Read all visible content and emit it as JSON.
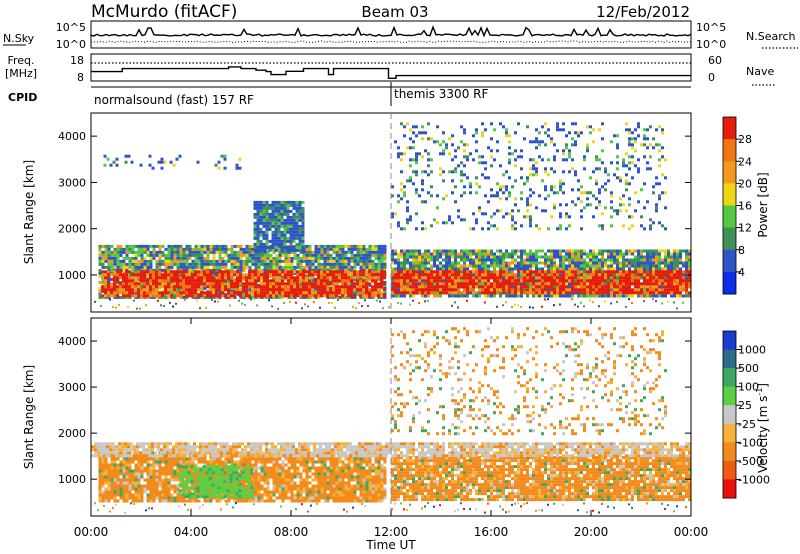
{
  "header": {
    "station": "McMurdo (fitACF)",
    "beam": "Beam 03",
    "date": "12/Feb/2012"
  },
  "noise_panel": {
    "left_label": "N.Sky",
    "right_label": "N.Search",
    "left_ticks": [
      "10^5",
      "10^0"
    ],
    "right_ticks": [
      "10^5",
      "10^0"
    ]
  },
  "freq_panel": {
    "left_label_1": "Freq.",
    "left_label_2": "[MHz]",
    "right_label": "Nave",
    "left_ticks": [
      "18",
      "8"
    ],
    "right_ticks": [
      "60",
      "0"
    ],
    "freq_mhz_segments": [
      {
        "start_h": 0.0,
        "end_h": 1.25,
        "value": 11.5
      },
      {
        "start_h": 1.25,
        "end_h": 5.5,
        "value": 12.6
      },
      {
        "start_h": 5.5,
        "end_h": 6.0,
        "value": 13.2
      },
      {
        "start_h": 6.0,
        "end_h": 6.6,
        "value": 12.6
      },
      {
        "start_h": 6.6,
        "end_h": 7.0,
        "value": 12.0
      },
      {
        "start_h": 7.0,
        "end_h": 7.2,
        "value": 11.5
      },
      {
        "start_h": 7.2,
        "end_h": 7.8,
        "value": 10.4
      },
      {
        "start_h": 7.8,
        "end_h": 8.5,
        "value": 11.6
      },
      {
        "start_h": 8.5,
        "end_h": 9.5,
        "value": 12.6
      },
      {
        "start_h": 9.5,
        "end_h": 9.7,
        "value": 10.4
      },
      {
        "start_h": 9.7,
        "end_h": 11.9,
        "value": 12.6
      },
      {
        "start_h": 11.9,
        "end_h": 12.2,
        "value": 9.0
      },
      {
        "start_h": 12.2,
        "end_h": 24.0,
        "value": 10.0
      }
    ],
    "nave_reference": 40
  },
  "cpid_panel": {
    "label": "CPID",
    "programs": [
      {
        "name": "normalsound (fast) 157 RF",
        "start_h": 0,
        "end_h": 12
      },
      {
        "name": "themis 3300 RF",
        "start_h": 12,
        "end_h": 24
      }
    ]
  },
  "chart_data": [
    {
      "type": "heatmap",
      "name": "power",
      "ylabel": "Slant Range [km]",
      "xlabel": "",
      "xlim": [
        0,
        24
      ],
      "ylim": [
        200,
        4500
      ],
      "y_ticks": [
        1000,
        2000,
        3000,
        4000
      ],
      "colorbar": {
        "label": "Power [dB]",
        "ticks": [
          "4",
          "8",
          "12",
          "16",
          "20",
          "24",
          "28"
        ],
        "colors": [
          "#0a2ee8",
          "#2e55c8",
          "#3f8f5a",
          "#55c843",
          "#f0d419",
          "#f09a1f",
          "#f27513",
          "#e81c0d"
        ]
      },
      "regions": [
        {
          "start_h": 0.3,
          "end_h": 11.8,
          "range_km": [
            500,
            1650
          ],
          "level": "medium"
        },
        {
          "start_h": 0.4,
          "end_h": 11.8,
          "range_km": [
            550,
            1100
          ],
          "level": "high"
        },
        {
          "start_h": 12.0,
          "end_h": 24.0,
          "range_km": [
            550,
            1550
          ],
          "level": "medium"
        },
        {
          "start_h": 12.0,
          "end_h": 24.0,
          "range_km": [
            600,
            1100
          ],
          "level": "high"
        },
        {
          "start_h": 6.5,
          "end_h": 8.5,
          "range_km": [
            1500,
            2600
          ],
          "level": "low"
        },
        {
          "start_h": 12.0,
          "end_h": 23.0,
          "range_km": [
            2000,
            4300
          ],
          "level": "sparse"
        },
        {
          "start_h": 0.5,
          "end_h": 6.0,
          "range_km": [
            3300,
            3600
          ],
          "level": "sparse"
        }
      ]
    },
    {
      "type": "heatmap",
      "name": "velocity",
      "ylabel": "Slant Range [km]",
      "xlabel": "Time UT",
      "xlim": [
        0,
        24
      ],
      "ylim": [
        200,
        4500
      ],
      "x_ticks": [
        "00:00",
        "04:00",
        "08:00",
        "12:00",
        "16:00",
        "20:00",
        "00:00"
      ],
      "y_ticks": [
        1000,
        2000,
        3000,
        4000
      ],
      "colorbar": {
        "label": "Velocity [m s^-1]",
        "ticks": [
          "1000",
          "500",
          "100",
          "25",
          "-25",
          "-100",
          "-500",
          "-1000"
        ],
        "colors": [
          "#1a3ad0",
          "#2c6e8a",
          "#3fa860",
          "#5cd043",
          "#c8c8c8",
          "#f6b13a",
          "#f28a1c",
          "#ee5a10",
          "#e8100d"
        ]
      },
      "regions": [
        {
          "start_h": 0.3,
          "end_h": 11.8,
          "range_km": [
            500,
            1600
          ],
          "level": "negative"
        },
        {
          "start_h": 3.5,
          "end_h": 6.5,
          "range_km": [
            600,
            1300
          ],
          "level": "positive"
        },
        {
          "start_h": 12.0,
          "end_h": 24.0,
          "range_km": [
            550,
            1500
          ],
          "level": "negative"
        },
        {
          "start_h": 0.0,
          "end_h": 24.0,
          "range_km": [
            1500,
            1800
          ],
          "level": "near-zero"
        },
        {
          "start_h": 12.0,
          "end_h": 23.0,
          "range_km": [
            2000,
            4300
          ],
          "level": "sparse"
        }
      ]
    }
  ]
}
